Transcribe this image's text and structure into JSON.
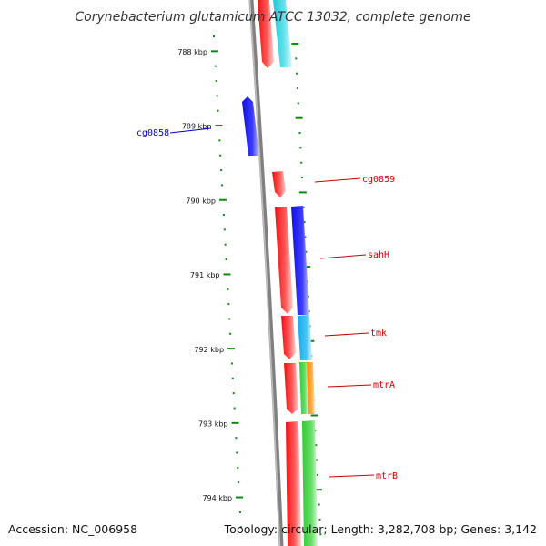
{
  "title": "Corynebacterium glutamicum ATCC 13032, complete genome",
  "footer": {
    "accession": "Accession: NC_006958",
    "summary": "Topology: circular; Length: 3,282,708 bp; Genes: 3,142"
  },
  "colors": {
    "red": "#ee1111",
    "cyan": "#22c8d8",
    "blue": "#1111dd",
    "skyblue": "#1aa8e8",
    "green": "#33cc33",
    "orange": "#ff8800",
    "tick": "#118811",
    "backbone": "#808080",
    "label_red": "#cc0000",
    "label_blue": "#0000cc"
  },
  "kbp_labels": [
    "788 kbp",
    "789 kbp",
    "790 kbp",
    "791 kbp",
    "792 kbp",
    "793 kbp",
    "794 kbp"
  ],
  "gene_labels": [
    {
      "name": "cg0858",
      "side": "left"
    },
    {
      "name": "cg0859",
      "side": "right"
    },
    {
      "name": "sahH",
      "side": "right"
    },
    {
      "name": "tmk",
      "side": "right"
    },
    {
      "name": "mtrA",
      "side": "right"
    },
    {
      "name": "mtrB",
      "side": "right"
    }
  ]
}
